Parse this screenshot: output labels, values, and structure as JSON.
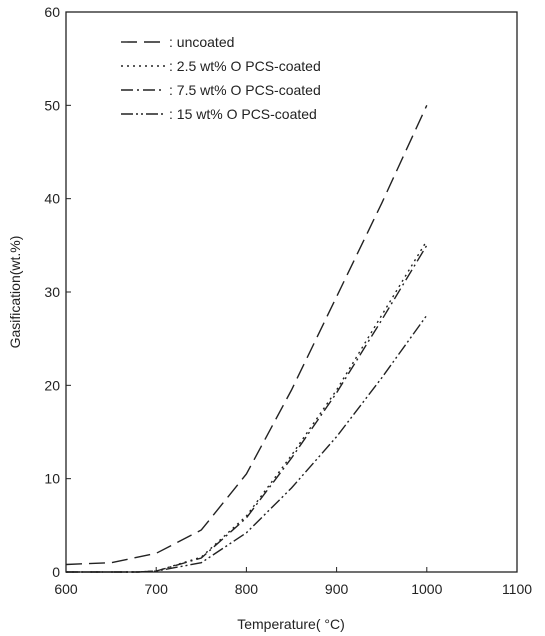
{
  "chart_data": {
    "type": "line",
    "xlabel": "Temperature( °C)",
    "ylabel": "Gasification(wt.%)",
    "xlim": [
      600,
      1100
    ],
    "ylim": [
      0,
      60
    ],
    "xticks": [
      600,
      700,
      800,
      900,
      1000,
      1100
    ],
    "yticks": [
      0,
      10,
      20,
      30,
      40,
      50,
      60
    ],
    "grid": false,
    "legend_position": "top-left",
    "series": [
      {
        "name": ": uncoated",
        "dash": "long-dash",
        "points": [
          [
            600,
            0.8
          ],
          [
            650,
            1.0
          ],
          [
            700,
            2.0
          ],
          [
            750,
            4.5
          ],
          [
            800,
            10.5
          ],
          [
            850,
            19.5
          ],
          [
            900,
            29.5
          ],
          [
            950,
            39.5
          ],
          [
            1000,
            50.0
          ]
        ]
      },
      {
        "name": ": 2.5 wt% O PCS-coated",
        "dash": "dotted",
        "points": [
          [
            600,
            0
          ],
          [
            680,
            0
          ],
          [
            700,
            0.1
          ],
          [
            750,
            1.6
          ],
          [
            800,
            6.0
          ],
          [
            850,
            12.5
          ],
          [
            900,
            19.5
          ],
          [
            950,
            27.5
          ],
          [
            1000,
            35.5
          ]
        ]
      },
      {
        "name": ": 7.5 wt% O PCS-coated",
        "dash": "dash-dot",
        "points": [
          [
            600,
            0
          ],
          [
            680,
            0
          ],
          [
            700,
            0.1
          ],
          [
            750,
            1.5
          ],
          [
            800,
            5.8
          ],
          [
            850,
            12.2
          ],
          [
            900,
            19.2
          ],
          [
            950,
            27.0
          ],
          [
            1000,
            35.0
          ]
        ]
      },
      {
        "name": ": 15 wt% O PCS-coated",
        "dash": "dash-dot-dot",
        "points": [
          [
            600,
            0
          ],
          [
            680,
            0
          ],
          [
            700,
            0.1
          ],
          [
            750,
            1.0
          ],
          [
            800,
            4.2
          ],
          [
            850,
            9.0
          ],
          [
            900,
            14.5
          ],
          [
            950,
            20.8
          ],
          [
            1000,
            27.5
          ]
        ]
      }
    ]
  }
}
